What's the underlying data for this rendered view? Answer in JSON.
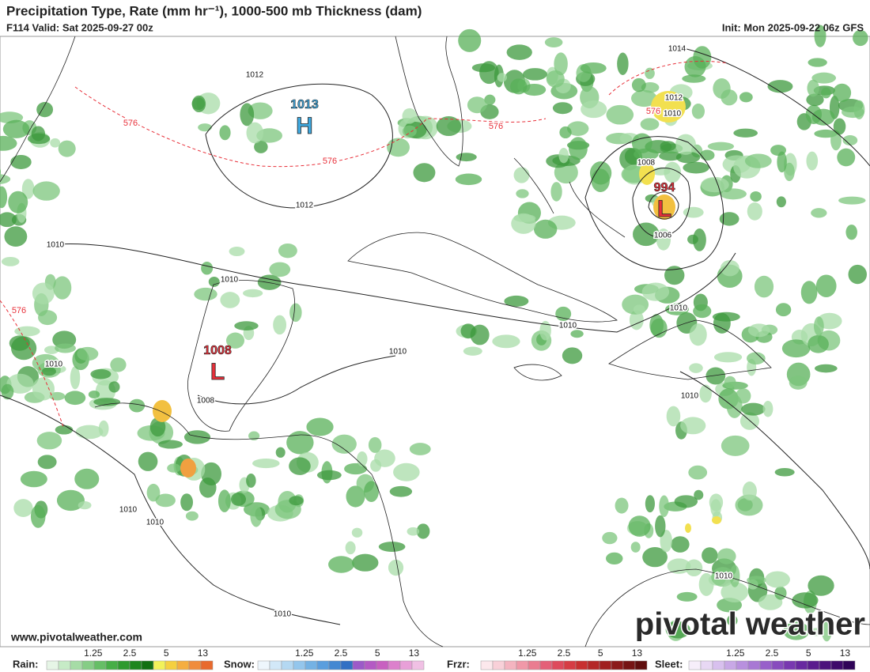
{
  "header": {
    "title": "Precipitation Type, Rate (mm hr⁻¹), 1000-500 mb Thickness (dam)",
    "valid": "F114 Valid: Sat 2025-09-27 00z",
    "init": "Init: Mon 2025-09-22 06z GFS"
  },
  "map": {
    "pressure_centers": [
      {
        "letter": "H",
        "value": "1013",
        "color": "#3fa9e0"
      },
      {
        "letter": "L",
        "value": "994",
        "color": "#e8303a"
      },
      {
        "letter": "L",
        "value": "1008",
        "color": "#e8303a"
      }
    ],
    "isobar_labels": [
      "1014",
      "1012",
      "1012",
      "1012",
      "1010",
      "1008",
      "1006",
      "1010",
      "1010",
      "1010",
      "1010",
      "1010",
      "1010",
      "1010",
      "1008",
      "1010",
      "1010",
      "1010",
      "1010"
    ],
    "thickness_labels": [
      "576",
      "576",
      "576",
      "576",
      "576"
    ]
  },
  "watermark": {
    "url": "www.pivotalweather.com",
    "logo": "pivotal weather"
  },
  "legend": [
    {
      "label": "Rain:",
      "ticks": [
        "1.25",
        "2.5",
        "5",
        "13"
      ],
      "colors": [
        "#e6f5e6",
        "#c6ebc6",
        "#a6dca6",
        "#86cd86",
        "#66be66",
        "#46ae46",
        "#2e9a2e",
        "#1e861e",
        "#127012",
        "#f2f25a",
        "#f5d040",
        "#f5ae40",
        "#f08c3c",
        "#e86a2e"
      ]
    },
    {
      "label": "Snow:",
      "ticks": [
        "1.25",
        "2.5",
        "5",
        "13"
      ],
      "colors": [
        "#eef6fc",
        "#d2e8f8",
        "#b4d8f2",
        "#94c6ec",
        "#74b2e4",
        "#5a9ede",
        "#4488d2",
        "#3270c4",
        "#9c5ac8",
        "#b45ac4",
        "#c860c0",
        "#dc80cc",
        "#e8a0d8",
        "#f0c0e4"
      ]
    },
    {
      "label": "Frzr:",
      "ticks": [
        "1.25",
        "2.5",
        "5",
        "13"
      ],
      "colors": [
        "#fce8ec",
        "#f8d0d8",
        "#f4b4c0",
        "#f098a8",
        "#ea7c90",
        "#e46078",
        "#de4a5c",
        "#d63c44",
        "#c83030",
        "#b42828",
        "#a02020",
        "#8c1a1a",
        "#761414",
        "#600e0e"
      ]
    },
    {
      "label": "Sleet:",
      "ticks": [
        "1.25",
        "2.5",
        "5",
        "13"
      ],
      "colors": [
        "#f6eefa",
        "#e8d8f4",
        "#d8c0ee",
        "#c8a8e6",
        "#b890de",
        "#a878d4",
        "#9860ca",
        "#884cbe",
        "#7838b0",
        "#6828a0",
        "#5a1c8e",
        "#4c127c",
        "#3e0a6a",
        "#300458"
      ]
    }
  ]
}
